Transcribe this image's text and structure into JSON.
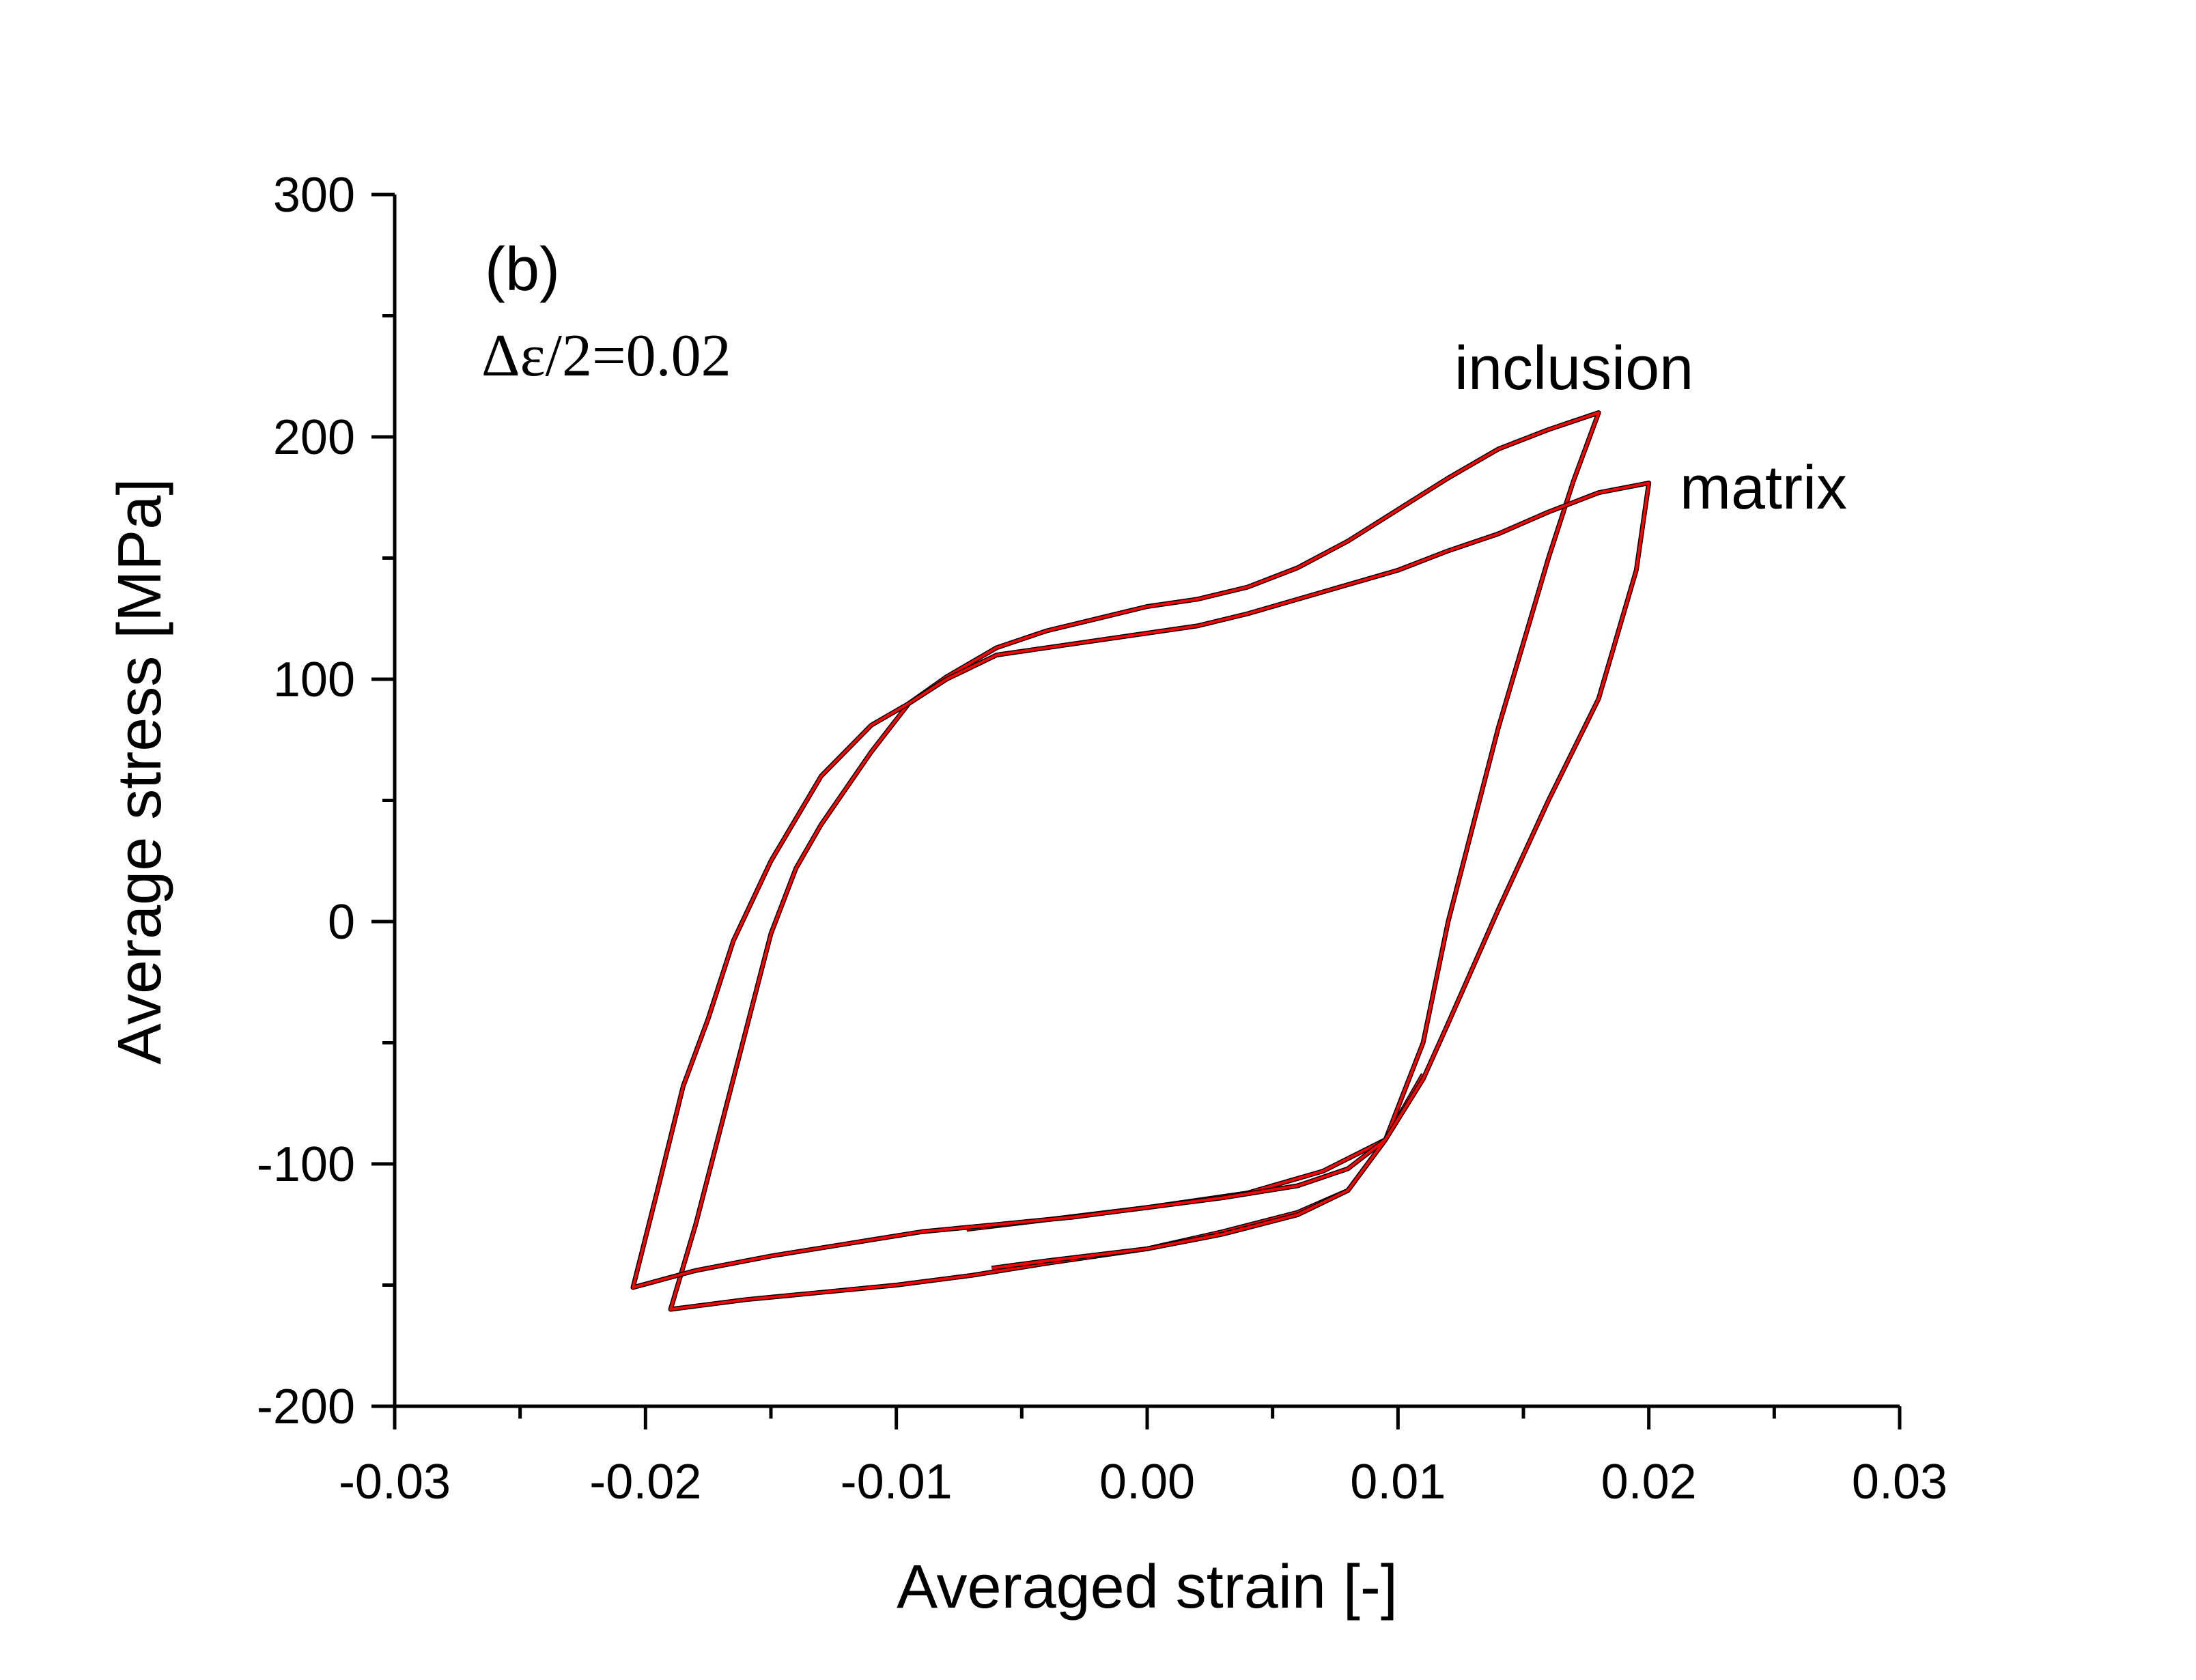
{
  "chart_data": {
    "type": "line",
    "panel_label": "(b)",
    "amplitude_label": "Δε/2=0.02",
    "xlabel": "Averaged strain [-]",
    "ylabel": "Average stress [MPa]",
    "xlim": [
      -0.03,
      0.03
    ],
    "ylim": [
      -200,
      300
    ],
    "x_ticks": [
      -0.03,
      -0.02,
      -0.01,
      0.0,
      0.01,
      0.02,
      0.03
    ],
    "x_tick_labels": [
      "-0.03",
      "-0.02",
      "-0.01",
      "0.00",
      "0.01",
      "0.02",
      "0.03"
    ],
    "y_ticks": [
      -200,
      -100,
      0,
      100,
      200,
      300
    ],
    "y_tick_labels": [
      "-200",
      "-100",
      "0",
      "100",
      "200",
      "300"
    ],
    "series": [
      {
        "name": "inclusion",
        "label": "inclusion",
        "colors": [
          "#000000",
          "#ff0000"
        ],
        "points": [
          [
            -0.0072,
            -127
          ],
          [
            -0.004,
            -123
          ],
          [
            0.0,
            -118
          ],
          [
            0.004,
            -112
          ],
          [
            0.007,
            -103
          ],
          [
            0.0095,
            -90
          ],
          [
            0.011,
            -50
          ],
          [
            0.012,
            0
          ],
          [
            0.013,
            40
          ],
          [
            0.014,
            80
          ],
          [
            0.015,
            115
          ],
          [
            0.016,
            150
          ],
          [
            0.017,
            182
          ],
          [
            0.018,
            210
          ],
          [
            0.016,
            203
          ],
          [
            0.014,
            195
          ],
          [
            0.012,
            183
          ],
          [
            0.01,
            170
          ],
          [
            0.008,
            157
          ],
          [
            0.006,
            146
          ],
          [
            0.004,
            138
          ],
          [
            0.002,
            133
          ],
          [
            0.0,
            130
          ],
          [
            -0.002,
            125
          ],
          [
            -0.004,
            120
          ],
          [
            -0.006,
            113
          ],
          [
            -0.008,
            101
          ],
          [
            -0.0095,
            90
          ],
          [
            -0.011,
            70
          ],
          [
            -0.013,
            40
          ],
          [
            -0.014,
            22
          ],
          [
            -0.015,
            -5
          ],
          [
            -0.016,
            -45
          ],
          [
            -0.017,
            -85
          ],
          [
            -0.018,
            -125
          ],
          [
            -0.019,
            -160
          ],
          [
            -0.016,
            -156
          ],
          [
            -0.013,
            -153
          ],
          [
            -0.01,
            -150
          ],
          [
            -0.007,
            -146
          ],
          [
            -0.004,
            -141
          ],
          [
            0.0,
            -135
          ],
          [
            0.003,
            -128
          ],
          [
            0.006,
            -120
          ],
          [
            0.008,
            -111
          ],
          [
            0.0095,
            -90
          ],
          [
            0.011,
            -63
          ]
        ]
      },
      {
        "name": "matrix",
        "label": "matrix",
        "colors": [
          "#000000",
          "#ff0000"
        ],
        "points": [
          [
            -0.0062,
            -143
          ],
          [
            -0.004,
            -140
          ],
          [
            0.0,
            -135
          ],
          [
            0.003,
            -129
          ],
          [
            0.006,
            -121
          ],
          [
            0.008,
            -111
          ],
          [
            0.0095,
            -90
          ],
          [
            0.011,
            -65
          ],
          [
            0.012,
            -42
          ],
          [
            0.014,
            5
          ],
          [
            0.016,
            50
          ],
          [
            0.018,
            92
          ],
          [
            0.0195,
            145
          ],
          [
            0.02,
            181
          ],
          [
            0.018,
            177
          ],
          [
            0.016,
            169
          ],
          [
            0.014,
            160
          ],
          [
            0.012,
            153
          ],
          [
            0.01,
            145
          ],
          [
            0.008,
            139
          ],
          [
            0.006,
            133
          ],
          [
            0.004,
            127
          ],
          [
            0.002,
            122
          ],
          [
            0.0,
            119
          ],
          [
            -0.002,
            116
          ],
          [
            -0.004,
            113
          ],
          [
            -0.006,
            110
          ],
          [
            -0.008,
            100
          ],
          [
            -0.0095,
            90
          ],
          [
            -0.011,
            81
          ],
          [
            -0.013,
            60
          ],
          [
            -0.015,
            25
          ],
          [
            -0.0165,
            -8
          ],
          [
            -0.0175,
            -40
          ],
          [
            -0.0185,
            -68
          ],
          [
            -0.0195,
            -110
          ],
          [
            -0.0205,
            -151
          ],
          [
            -0.018,
            -144
          ],
          [
            -0.015,
            -138
          ],
          [
            -0.012,
            -133
          ],
          [
            -0.009,
            -128
          ],
          [
            -0.006,
            -125
          ],
          [
            -0.003,
            -122
          ],
          [
            0.0,
            -118
          ],
          [
            0.003,
            -114
          ],
          [
            0.006,
            -109
          ],
          [
            0.008,
            -102
          ],
          [
            0.0095,
            -90
          ]
        ]
      }
    ]
  }
}
